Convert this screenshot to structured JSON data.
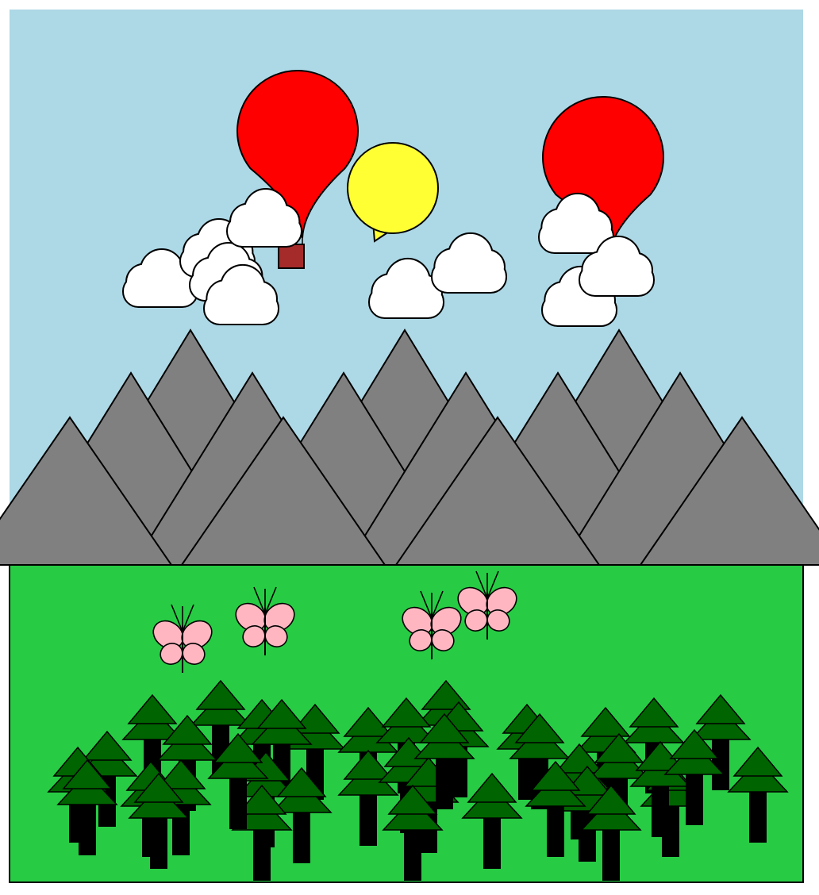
{
  "colors": {
    "background": "#ffffff",
    "sky": "#add8e6",
    "ground": "#27cc44",
    "mountain": "#808080",
    "cloud": "#ffffff",
    "balloon": "#ff0000",
    "basket": "#a52a2a",
    "sun": "#ffff33",
    "butterfly": "#ffb6c1",
    "tree_foliage": "#006400",
    "tree_trunk": "#000000",
    "outline": "#000000"
  },
  "scene": {
    "balloon_count": 2,
    "sun_count": 1,
    "cloud_count": 11,
    "mountain_count": 13,
    "butterfly_count": 4,
    "tree_count": 40
  }
}
